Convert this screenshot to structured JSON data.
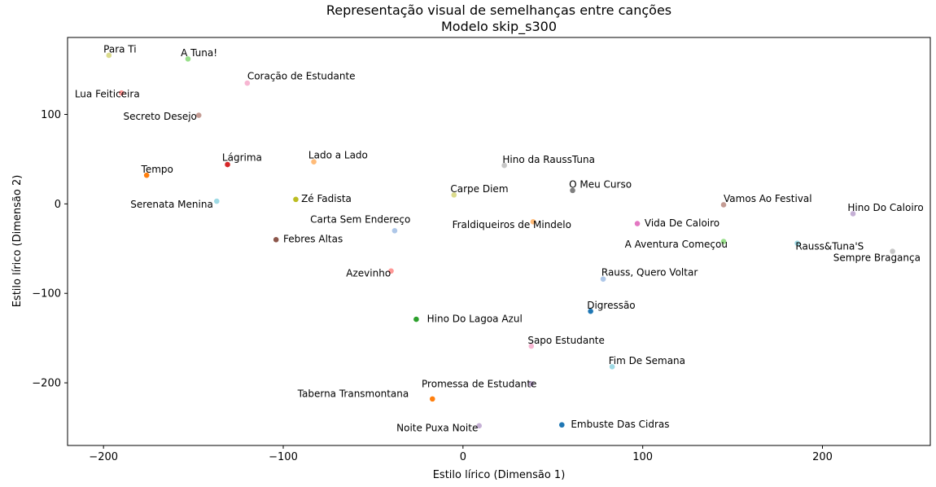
{
  "chart_data": {
    "type": "scatter",
    "title": "Representação visual de semelhanças entre canções",
    "subtitle": "Modelo skip_s300",
    "xlabel": "Estilo lírico (Dimensão 1)",
    "ylabel": "Estilo lírico (Dimensão 2)",
    "xlim": [
      -220,
      260
    ],
    "ylim": [
      -270,
      186
    ],
    "xticks": [
      -200,
      -100,
      0,
      100,
      200
    ],
    "yticks": [
      -200,
      -100,
      0,
      100
    ],
    "grid": false,
    "legend": "none",
    "points": [
      {
        "label": "Para Ti",
        "x": -197,
        "y": 166,
        "color": "#dbdb8d",
        "lx": -200,
        "ly": 169
      },
      {
        "label": "A Tuna!",
        "x": -153,
        "y": 162,
        "color": "#98df8a",
        "lx": -157,
        "ly": 165
      },
      {
        "label": "Coração de Estudante",
        "x": -120,
        "y": 135,
        "color": "#f7b6d2",
        "lx": -120,
        "ly": 139
      },
      {
        "label": "Lua Feiticeira",
        "x": -190,
        "y": 124,
        "color": "#ff9896",
        "lx": -216,
        "ly": 119
      },
      {
        "label": "Secreto Desejo",
        "x": -147,
        "y": 99,
        "color": "#c49c94",
        "lx": -189,
        "ly": 94
      },
      {
        "label": "Lágrima",
        "x": -131,
        "y": 44,
        "color": "#d62728",
        "lx": -134,
        "ly": 48
      },
      {
        "label": "Lado a Lado",
        "x": -83,
        "y": 47,
        "color": "#ffbb78",
        "lx": -86,
        "ly": 51
      },
      {
        "label": "Tempo",
        "x": -176,
        "y": 32,
        "color": "#ff7f0e",
        "lx": -179,
        "ly": 35
      },
      {
        "label": "Hino da RaussTuna",
        "x": 23,
        "y": 43,
        "color": "#c7c7c7",
        "lx": 22,
        "ly": 46
      },
      {
        "label": "O Meu Curso",
        "x": 61,
        "y": 15,
        "color": "#7f7f7f",
        "lx": 59,
        "ly": 18
      },
      {
        "label": "Carpe Diem",
        "x": -5,
        "y": 10,
        "color": "#dbdb8d",
        "lx": -7,
        "ly": 13
      },
      {
        "label": "Zé Fadista",
        "x": -93,
        "y": 5,
        "color": "#bcbd22",
        "lx": -90,
        "ly": 2
      },
      {
        "label": "Serenata Menina",
        "x": -137,
        "y": 3,
        "color": "#9edae5",
        "lx": -185,
        "ly": -4
      },
      {
        "label": "Vamos Ao Festival",
        "x": 145,
        "y": -1,
        "color": "#c49c94",
        "lx": 145,
        "ly": 2
      },
      {
        "label": "Hino Do Caloiro",
        "x": 217,
        "y": -11,
        "color": "#c5b0d5",
        "lx": 214,
        "ly": -8
      },
      {
        "label": "Vida De Caloiro",
        "x": 97,
        "y": -22,
        "color": "#e377c2",
        "lx": 101,
        "ly": -25
      },
      {
        "label": "Fraldiqueiros de Mindelo",
        "x": 39,
        "y": -20,
        "color": "#ffbb78",
        "lx": -6,
        "ly": -27
      },
      {
        "label": "Carta Sem Endereço",
        "x": -38,
        "y": -30,
        "color": "#aec7e8",
        "lx": -85,
        "ly": -21
      },
      {
        "label": "Febres Altas",
        "x": -104,
        "y": -40,
        "color": "#8c564b",
        "lx": -100,
        "ly": -43
      },
      {
        "label": "A Aventura Começou",
        "x": 145,
        "y": -42,
        "color": "#98df8a",
        "lx": 90,
        "ly": -49
      },
      {
        "label": "Rauss&Tuna'S",
        "x": 186,
        "y": -44,
        "color": "#9edae5",
        "lx": 185,
        "ly": -51
      },
      {
        "label": "Sempre Bragança",
        "x": 239,
        "y": -53,
        "color": "#c7c7c7",
        "lx": 206,
        "ly": -64
      },
      {
        "label": "Azevinho",
        "x": -40,
        "y": -75,
        "color": "#ff9896",
        "lx": -65,
        "ly": -81
      },
      {
        "label": "Rauss, Quero Voltar",
        "x": 78,
        "y": -84,
        "color": "#aec7e8",
        "lx": 77,
        "ly": -80
      },
      {
        "label": "Digressão",
        "x": 71,
        "y": -120,
        "color": "#1f77b4",
        "lx": 69,
        "ly": -117
      },
      {
        "label": "Hino Do Lagoa Azul",
        "x": -26,
        "y": -129,
        "color": "#2ca02c",
        "lx": -20,
        "ly": -132
      },
      {
        "label": "Sapo Estudante",
        "x": 38,
        "y": -159,
        "color": "#f7b6d2",
        "lx": 36,
        "ly": -156
      },
      {
        "label": "Fim De Semana",
        "x": 83,
        "y": -182,
        "color": "#9edae5",
        "lx": 81,
        "ly": -179
      },
      {
        "label": "Promessa de Estudante",
        "x": 38,
        "y": -201,
        "color": "#c5b0d5",
        "lx": -23,
        "ly": -205
      },
      {
        "label": "Taberna Transmontana",
        "x": -17,
        "y": -218,
        "color": "#ff7f0e",
        "lx": -92,
        "ly": -216
      },
      {
        "label": "Embuste Das Cidras",
        "x": 55,
        "y": -247,
        "color": "#1f77b4",
        "lx": 60,
        "ly": -250
      },
      {
        "label": "Noite Puxa Noite",
        "x": 9,
        "y": -248,
        "color": "#c5b0d5",
        "lx": -37,
        "ly": -254
      }
    ]
  }
}
